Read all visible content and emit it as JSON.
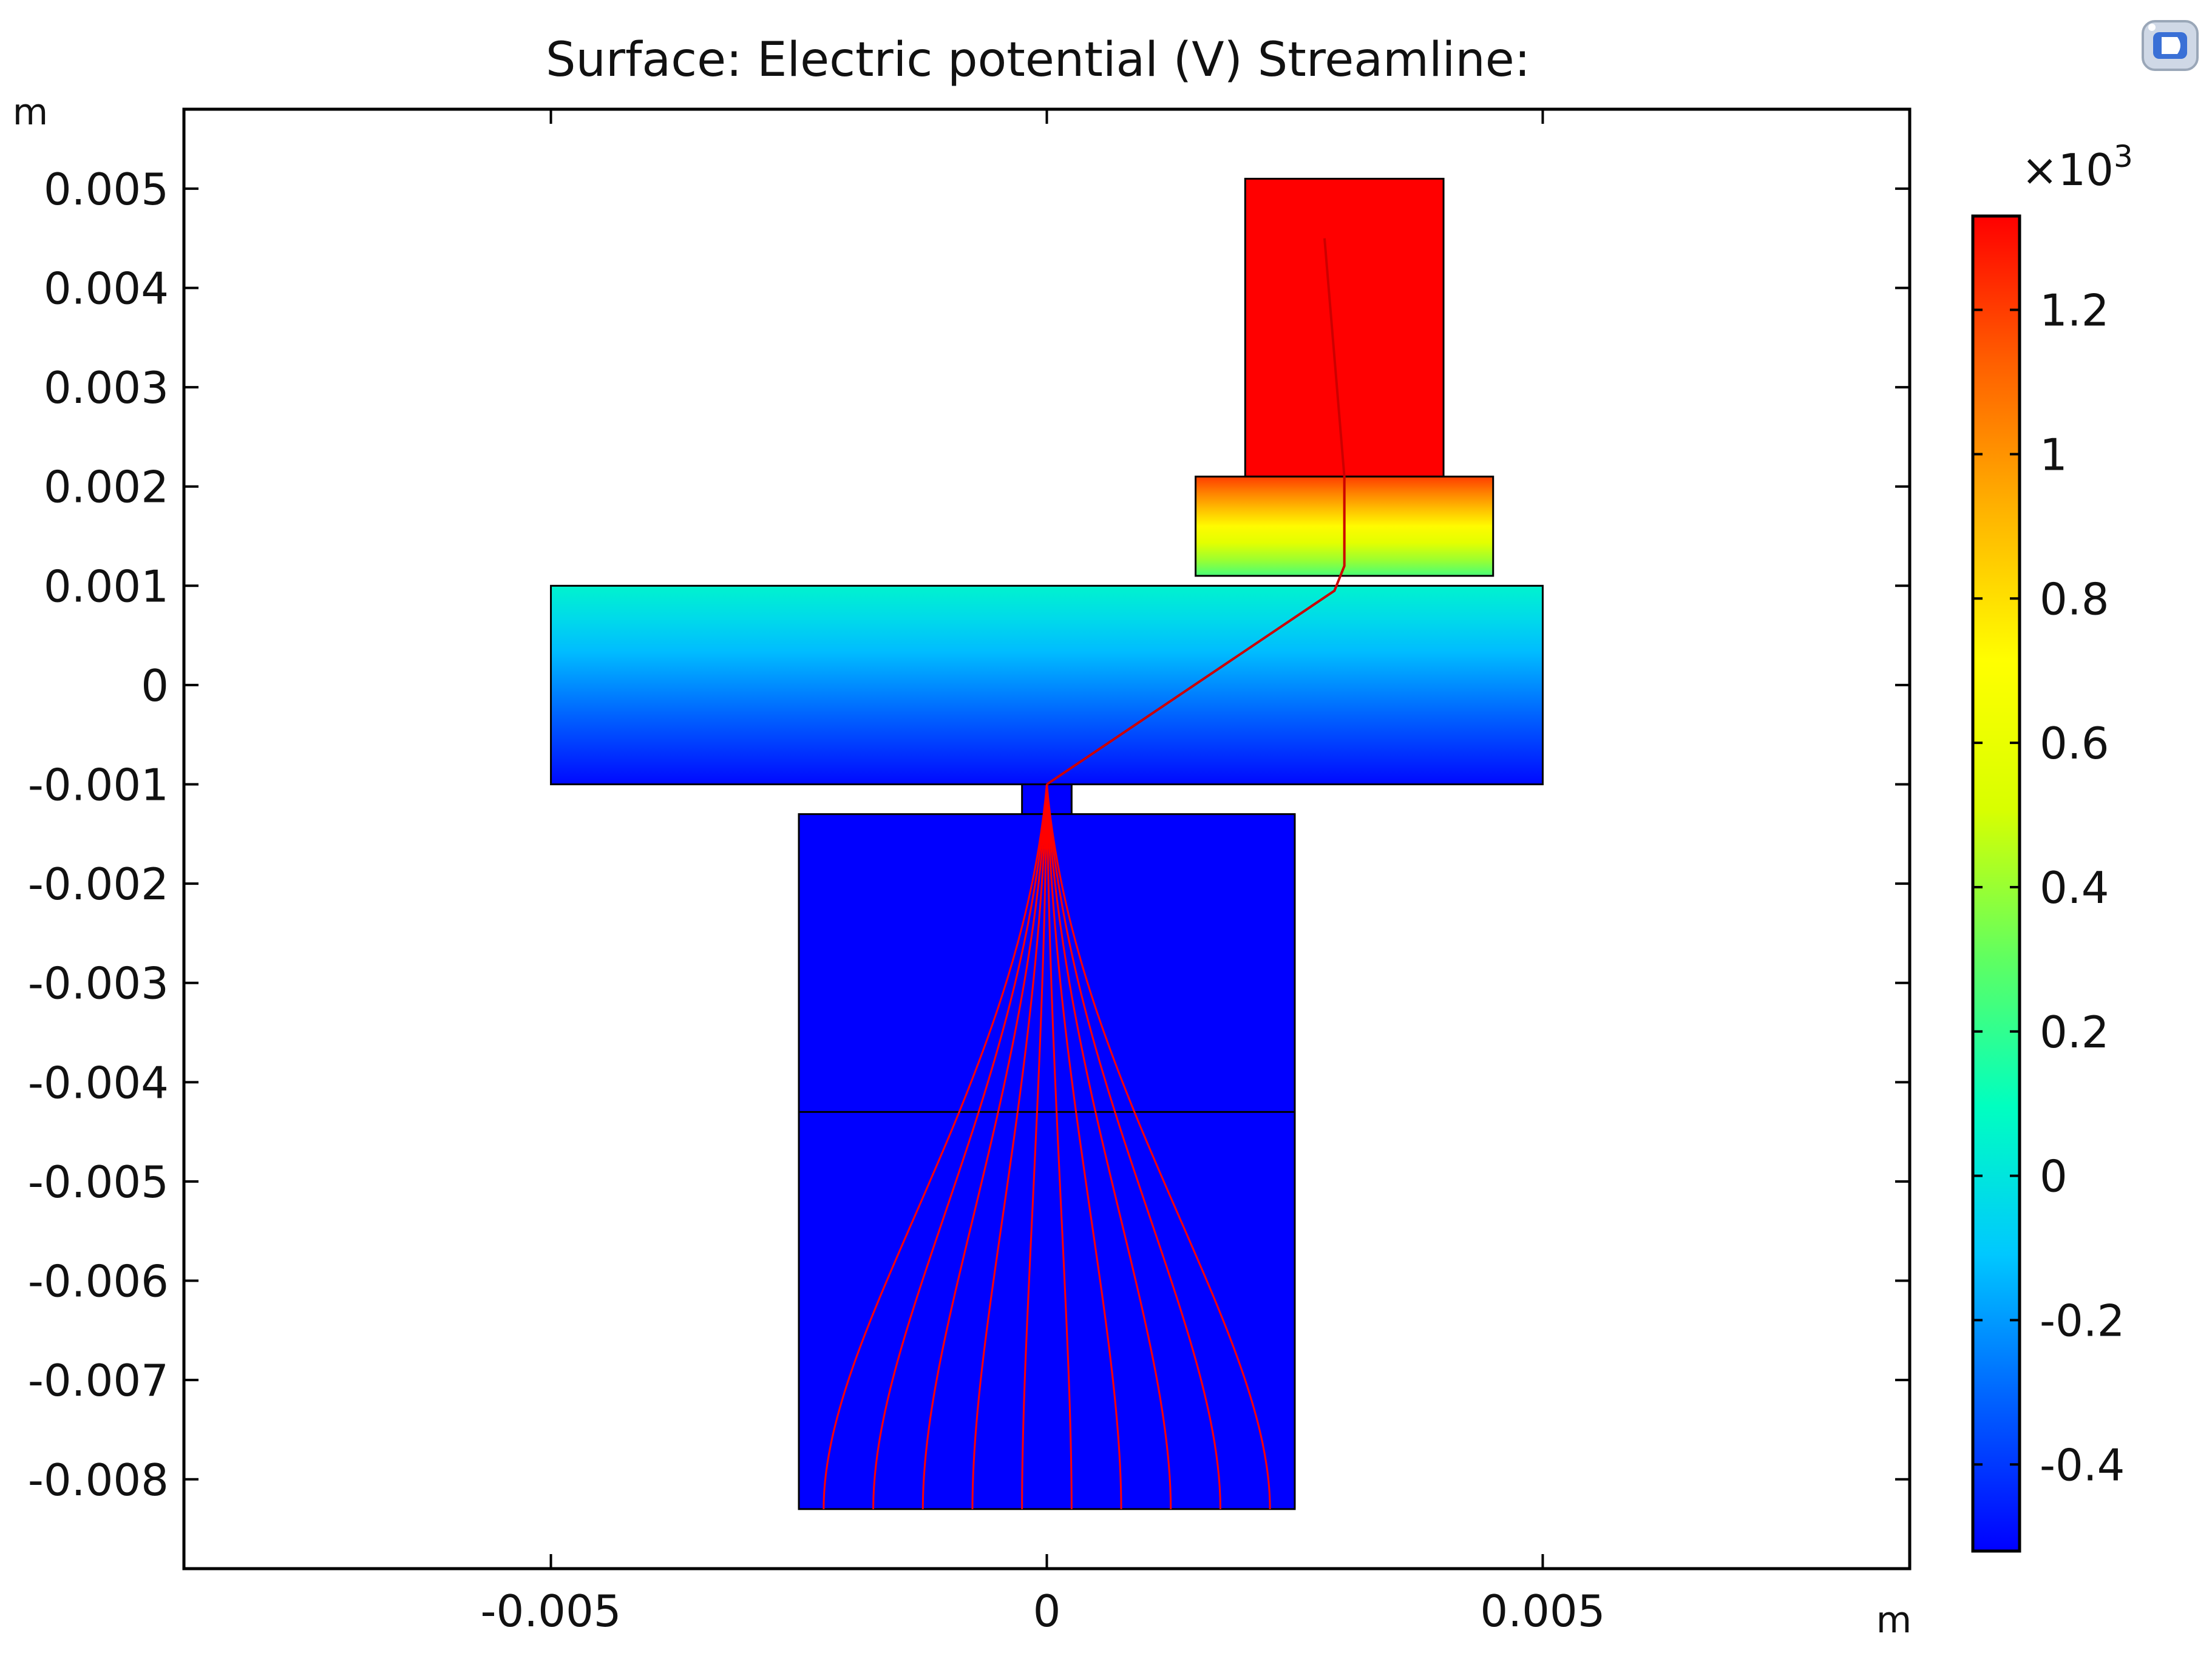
{
  "title": "Surface: Electric potential (V)  Streamline:",
  "corner_icon": "comsol-logo-icon",
  "chart_data": {
    "type": "heatmap",
    "xlabel": "m",
    "ylabel": "m",
    "xlim": [
      -0.0087,
      0.0087
    ],
    "ylim": [
      -0.0089,
      0.0058
    ],
    "xticks": [
      -0.005,
      0,
      0.005
    ],
    "xtick_labels": [
      "-0.005",
      "0",
      "0.005"
    ],
    "yticks": [
      0.005,
      0.004,
      0.003,
      0.002,
      0.001,
      0,
      -0.001,
      -0.002,
      -0.003,
      -0.004,
      -0.005,
      -0.006,
      -0.007,
      -0.008
    ],
    "ytick_labels": [
      "0.005",
      "0.004",
      "0.003",
      "0.002",
      "0.001",
      "0",
      "-0.001",
      "-0.002",
      "-0.003",
      "-0.004",
      "-0.005",
      "-0.006",
      "-0.007",
      "-0.008"
    ],
    "colorbar": {
      "multiplier": "×10",
      "exponent": "3",
      "range": [
        -0.52,
        1.33
      ],
      "ticks": [
        1.2,
        1,
        0.8,
        0.6,
        0.4,
        0.2,
        0,
        -0.2,
        -0.4
      ],
      "tick_labels": [
        "1.2",
        "1",
        "0.8",
        "0.6",
        "0.4",
        "0.2",
        "0",
        "-0.2",
        "-0.4"
      ],
      "colormap": [
        "#0000ff",
        "#0060ff",
        "#00c8ff",
        "#00ffc0",
        "#60ff60",
        "#d8ff00",
        "#ffff00",
        "#ffb400",
        "#ff6000",
        "#ff0000"
      ]
    },
    "domains": [
      {
        "name": "top-electrode",
        "x": [
          0.002,
          0.004
        ],
        "y": [
          0.0021,
          0.0051
        ],
        "v_top": 1.33,
        "v_bottom": 1.33
      },
      {
        "name": "upper-plate",
        "x": [
          0.0015,
          0.0045
        ],
        "y": [
          0.0011,
          0.0021
        ],
        "v_top": 1.2,
        "v_bottom": 0.25
      },
      {
        "name": "middle-slab",
        "x": [
          -0.005,
          0.005
        ],
        "y": [
          -0.001,
          0.001
        ],
        "v_top": 0.05,
        "v_bottom": -0.5
      },
      {
        "name": "neck",
        "x": [
          -0.00025,
          0.00025
        ],
        "y": [
          -0.0013,
          -0.001
        ],
        "v_top": -0.52,
        "v_bottom": -0.52
      },
      {
        "name": "bottom-block",
        "x": [
          -0.0025,
          0.0025
        ],
        "y": [
          -0.0083,
          -0.0013
        ],
        "v_top": -0.52,
        "v_bottom": -0.52
      }
    ],
    "internal_boundaries": [
      {
        "x": [
          -0.0025,
          0.0025
        ],
        "y": -0.0043
      }
    ],
    "streamlines": {
      "color": "#ff0000",
      "start_x": [
        -0.00225,
        -0.00175,
        -0.00125,
        -0.00075,
        -0.00025,
        0.00025,
        0.00075,
        0.00125,
        0.00175,
        0.00225
      ],
      "start_y": -0.0083,
      "merge_point": [
        0,
        -0.001
      ],
      "path_to_top": [
        [
          0,
          -0.001
        ],
        [
          0.0029,
          0.00095
        ],
        [
          0.003,
          0.0012
        ],
        [
          0.003,
          0.0021
        ],
        [
          0.0028,
          0.0045
        ]
      ]
    }
  }
}
